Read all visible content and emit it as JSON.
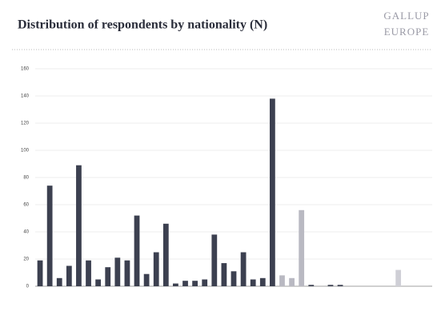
{
  "chart_data": {
    "type": "bar",
    "title": "Distribution of respondents by nationality (N)",
    "logo": [
      "GALLUP",
      "EUROPE"
    ],
    "categories": [
      null,
      null,
      null,
      null,
      null,
      null,
      null,
      null,
      null,
      null,
      null,
      null,
      null,
      null,
      null,
      null,
      null,
      null,
      null,
      null,
      null,
      null,
      null,
      null,
      null,
      null,
      null,
      null,
      null,
      null,
      null,
      null,
      null,
      null,
      null,
      null,
      null,
      null,
      null,
      null,
      null
    ],
    "values": [
      19,
      74,
      6,
      15,
      89,
      19,
      5,
      14,
      21,
      19,
      52,
      9,
      25,
      46,
      2,
      4,
      4,
      5,
      38,
      17,
      11,
      25,
      5,
      6,
      138,
      8,
      6,
      56,
      1,
      0,
      1,
      1,
      0,
      0,
      0,
      0,
      0,
      12,
      0,
      0,
      0
    ],
    "colors": [
      "#3c4050",
      "#3c4050",
      "#3c4050",
      "#3c4050",
      "#3c4050",
      "#3c4050",
      "#3c4050",
      "#3c4050",
      "#3c4050",
      "#3c4050",
      "#3c4050",
      "#3c4050",
      "#3c4050",
      "#3c4050",
      "#3c4050",
      "#3c4050",
      "#3c4050",
      "#3c4050",
      "#3c4050",
      "#3c4050",
      "#3c4050",
      "#3c4050",
      "#3c4050",
      "#3c4050",
      "#3c4050",
      "#b9b9c2",
      "#b9b9c2",
      "#b9b9c2",
      "#3c4050",
      "#3c4050",
      "#3c4050",
      "#3c4050",
      "#3c4050",
      "#3c4050",
      "#3c4050",
      "#3c4050",
      "#3c4050",
      "#cfcfd6",
      "#3c4050",
      "#3c4050",
      "#3c4050"
    ],
    "ylim": [
      0,
      160
    ],
    "yticks": [
      0,
      20,
      40,
      60,
      80,
      100,
      120,
      140,
      160
    ],
    "grid": true
  }
}
